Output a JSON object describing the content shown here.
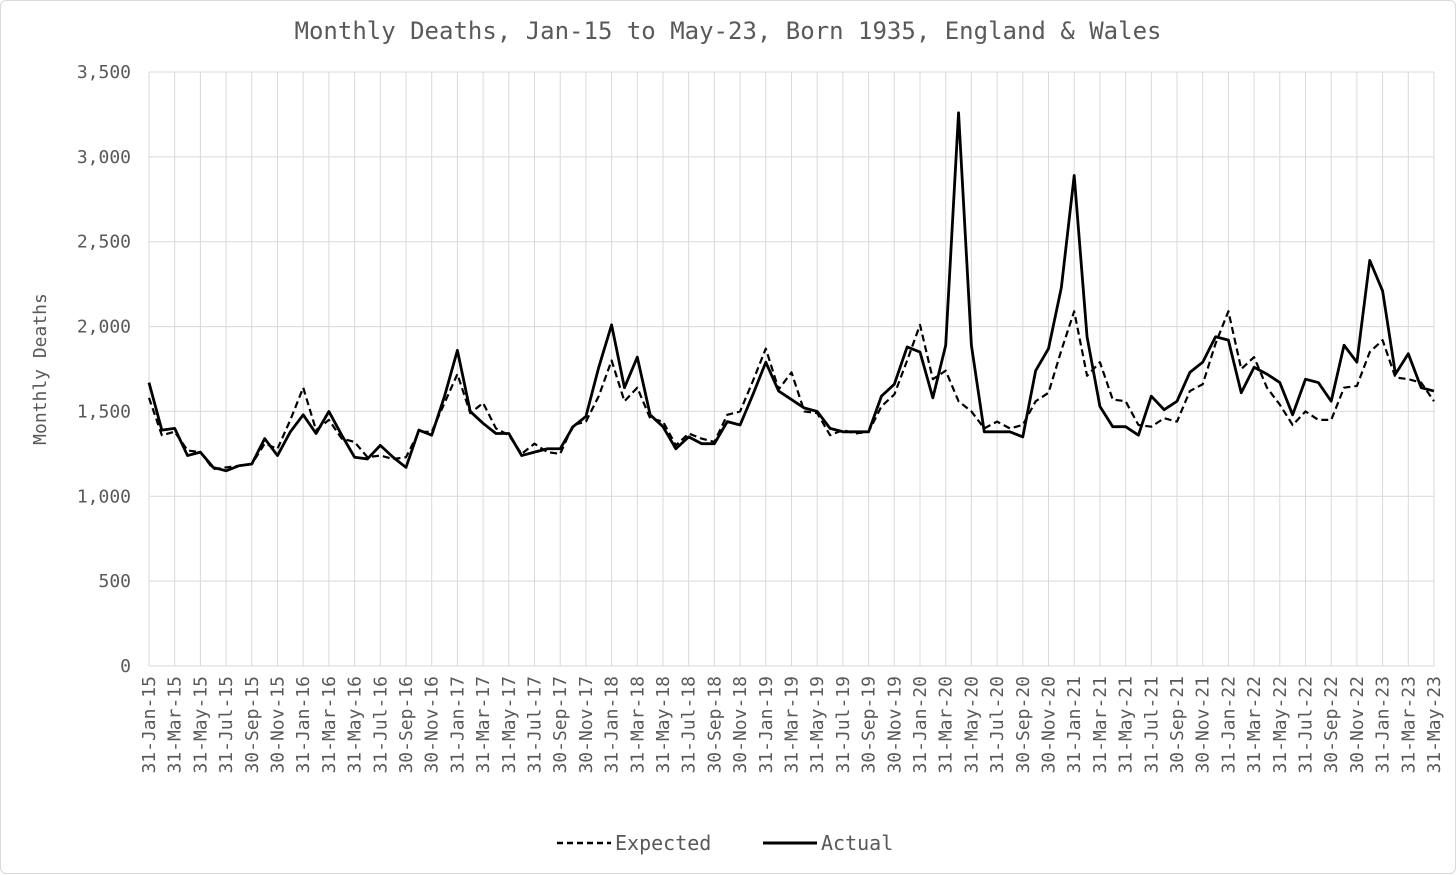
{
  "chart_data": {
    "type": "line",
    "title": "Monthly Deaths, Jan-15 to May-23, Born 1935, England & Wales",
    "xlabel": "",
    "ylabel": "Monthly Deaths",
    "ylim": [
      0,
      3500
    ],
    "y_ticks": [
      "0",
      "500",
      "1,000",
      "1,500",
      "2,000",
      "2,500",
      "3,000",
      "3,500"
    ],
    "y_tick_values": [
      0,
      500,
      1000,
      1500,
      2000,
      2500,
      3000,
      3500
    ],
    "grid": true,
    "legend": "bottom-center",
    "x": [
      "31-Jan-15",
      "28-Feb-15",
      "31-Mar-15",
      "30-Apr-15",
      "31-May-15",
      "30-Jun-15",
      "31-Jul-15",
      "31-Aug-15",
      "30-Sep-15",
      "31-Oct-15",
      "30-Nov-15",
      "31-Dec-15",
      "31-Jan-16",
      "29-Feb-16",
      "31-Mar-16",
      "30-Apr-16",
      "31-May-16",
      "30-Jun-16",
      "31-Jul-16",
      "31-Aug-16",
      "30-Sep-16",
      "31-Oct-16",
      "30-Nov-16",
      "31-Dec-16",
      "31-Jan-17",
      "28-Feb-17",
      "31-Mar-17",
      "30-Apr-17",
      "31-May-17",
      "30-Jun-17",
      "31-Jul-17",
      "31-Aug-17",
      "30-Sep-17",
      "31-Oct-17",
      "30-Nov-17",
      "31-Dec-17",
      "31-Jan-18",
      "28-Feb-18",
      "31-Mar-18",
      "30-Apr-18",
      "31-May-18",
      "30-Jun-18",
      "31-Jul-18",
      "31-Aug-18",
      "30-Sep-18",
      "31-Oct-18",
      "30-Nov-18",
      "31-Dec-18",
      "31-Jan-19",
      "28-Feb-19",
      "31-Mar-19",
      "30-Apr-19",
      "31-May-19",
      "30-Jun-19",
      "31-Jul-19",
      "31-Aug-19",
      "30-Sep-19",
      "31-Oct-19",
      "30-Nov-19",
      "31-Dec-19",
      "31-Jan-20",
      "29-Feb-20",
      "31-Mar-20",
      "30-Apr-20",
      "31-May-20",
      "30-Jun-20",
      "31-Jul-20",
      "31-Aug-20",
      "30-Sep-20",
      "31-Oct-20",
      "30-Nov-20",
      "31-Dec-20",
      "31-Jan-21",
      "28-Feb-21",
      "31-Mar-21",
      "30-Apr-21",
      "31-May-21",
      "30-Jun-21",
      "31-Jul-21",
      "31-Aug-21",
      "30-Sep-21",
      "31-Oct-21",
      "30-Nov-21",
      "31-Dec-21",
      "31-Jan-22",
      "28-Feb-22",
      "31-Mar-22",
      "30-Apr-22",
      "31-May-22",
      "30-Jun-22",
      "31-Jul-22",
      "31-Aug-22",
      "30-Sep-22",
      "31-Oct-22",
      "30-Nov-22",
      "31-Dec-22",
      "31-Jan-23",
      "28-Feb-23",
      "31-Mar-23",
      "30-Apr-23",
      "31-May-23"
    ],
    "x_tick_labels": [
      "31-Jan-15",
      "31-Mar-15",
      "31-May-15",
      "31-Jul-15",
      "30-Sep-15",
      "30-Nov-15",
      "31-Jan-16",
      "31-Mar-16",
      "31-May-16",
      "31-Jul-16",
      "30-Sep-16",
      "30-Nov-16",
      "31-Jan-17",
      "31-Mar-17",
      "31-May-17",
      "31-Jul-17",
      "30-Sep-17",
      "30-Nov-17",
      "31-Jan-18",
      "31-Mar-18",
      "31-May-18",
      "31-Jul-18",
      "30-Sep-18",
      "30-Nov-18",
      "31-Jan-19",
      "31-Mar-19",
      "31-May-19",
      "31-Jul-19",
      "30-Sep-19",
      "30-Nov-19",
      "31-Jan-20",
      "31-Mar-20",
      "31-May-20",
      "31-Jul-20",
      "30-Sep-20",
      "30-Nov-20",
      "31-Jan-21",
      "31-Mar-21",
      "31-May-21",
      "31-Jul-21",
      "30-Sep-21",
      "30-Nov-21",
      "31-Jan-22",
      "31-Mar-22",
      "31-May-22",
      "31-Jul-22",
      "30-Sep-22",
      "30-Nov-22",
      "31-Jan-23",
      "31-Mar-23",
      "31-May-23"
    ],
    "series": [
      {
        "name": "Expected",
        "style": "dashed",
        "color": "#000000",
        "values": [
          1580,
          1360,
          1380,
          1270,
          1260,
          1160,
          1170,
          1180,
          1190,
          1310,
          1280,
          1450,
          1640,
          1390,
          1450,
          1340,
          1320,
          1230,
          1240,
          1220,
          1230,
          1380,
          1380,
          1550,
          1720,
          1490,
          1550,
          1400,
          1360,
          1250,
          1310,
          1260,
          1250,
          1420,
          1440,
          1590,
          1800,
          1560,
          1640,
          1460,
          1440,
          1300,
          1370,
          1340,
          1320,
          1480,
          1500,
          1680,
          1870,
          1630,
          1730,
          1500,
          1490,
          1360,
          1390,
          1370,
          1380,
          1530,
          1600,
          1800,
          2010,
          1690,
          1740,
          1560,
          1500,
          1400,
          1440,
          1400,
          1420,
          1560,
          1610,
          1860,
          2090,
          1710,
          1790,
          1570,
          1560,
          1420,
          1410,
          1460,
          1440,
          1620,
          1660,
          1900,
          2090,
          1750,
          1820,
          1640,
          1540,
          1420,
          1500,
          1450,
          1450,
          1640,
          1650,
          1850,
          1920,
          1700,
          1690,
          1670,
          1560
        ]
      },
      {
        "name": "Actual",
        "style": "solid",
        "color": "#000000",
        "values": [
          1670,
          1390,
          1400,
          1240,
          1260,
          1170,
          1150,
          1180,
          1190,
          1340,
          1240,
          1380,
          1480,
          1370,
          1500,
          1360,
          1230,
          1220,
          1300,
          1230,
          1170,
          1390,
          1360,
          1590,
          1860,
          1500,
          1430,
          1370,
          1370,
          1240,
          1260,
          1280,
          1280,
          1410,
          1470,
          1760,
          2010,
          1640,
          1820,
          1480,
          1410,
          1280,
          1350,
          1310,
          1310,
          1440,
          1420,
          1600,
          1790,
          1620,
          1570,
          1520,
          1500,
          1400,
          1380,
          1380,
          1380,
          1590,
          1660,
          1880,
          1850,
          1580,
          1890,
          3260,
          1890,
          1380,
          1380,
          1380,
          1350,
          1740,
          1870,
          2230,
          2890,
          1940,
          1530,
          1410,
          1410,
          1360,
          1590,
          1510,
          1560,
          1730,
          1790,
          1940,
          1920,
          1610,
          1760,
          1720,
          1670,
          1480,
          1690,
          1670,
          1560,
          1890,
          1790,
          2390,
          2210,
          1720,
          1840,
          1640,
          1620
        ]
      }
    ]
  }
}
